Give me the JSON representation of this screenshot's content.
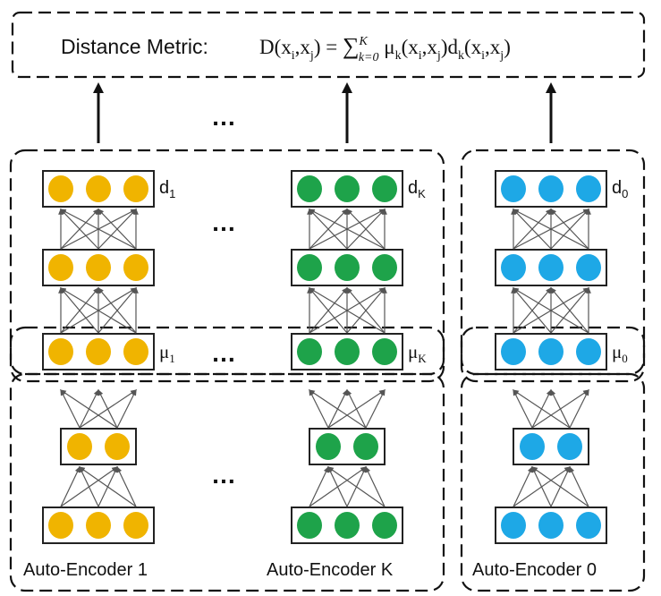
{
  "metric": {
    "prefix": "Distance Metric:",
    "formula": "D(xi,xj) = ∑_{k=0}^{K} μk(xi,xj) dk(xi,xj)"
  },
  "ellipsis": "…",
  "colors": {
    "ae_1": "#f0b400",
    "ae_K": "#1ea34a",
    "ae_0": "#1ea8e6",
    "stroke": "#111111"
  },
  "encoders": [
    {
      "key": "ae1",
      "color_key": "ae_1",
      "label": "Auto-Encoder 1",
      "d_base": "d",
      "d_sub": "1",
      "mu_base": "μ",
      "mu_sub": "1"
    },
    {
      "key": "aeK",
      "color_key": "ae_K",
      "label": "Auto-Encoder K",
      "d_base": "d",
      "d_sub": "K",
      "mu_base": "μ",
      "mu_sub": "K"
    },
    {
      "key": "ae0",
      "color_key": "ae_0",
      "label": "Auto-Encoder 0",
      "d_base": "d",
      "d_sub": "0",
      "mu_base": "μ",
      "mu_sub": "0"
    }
  ]
}
